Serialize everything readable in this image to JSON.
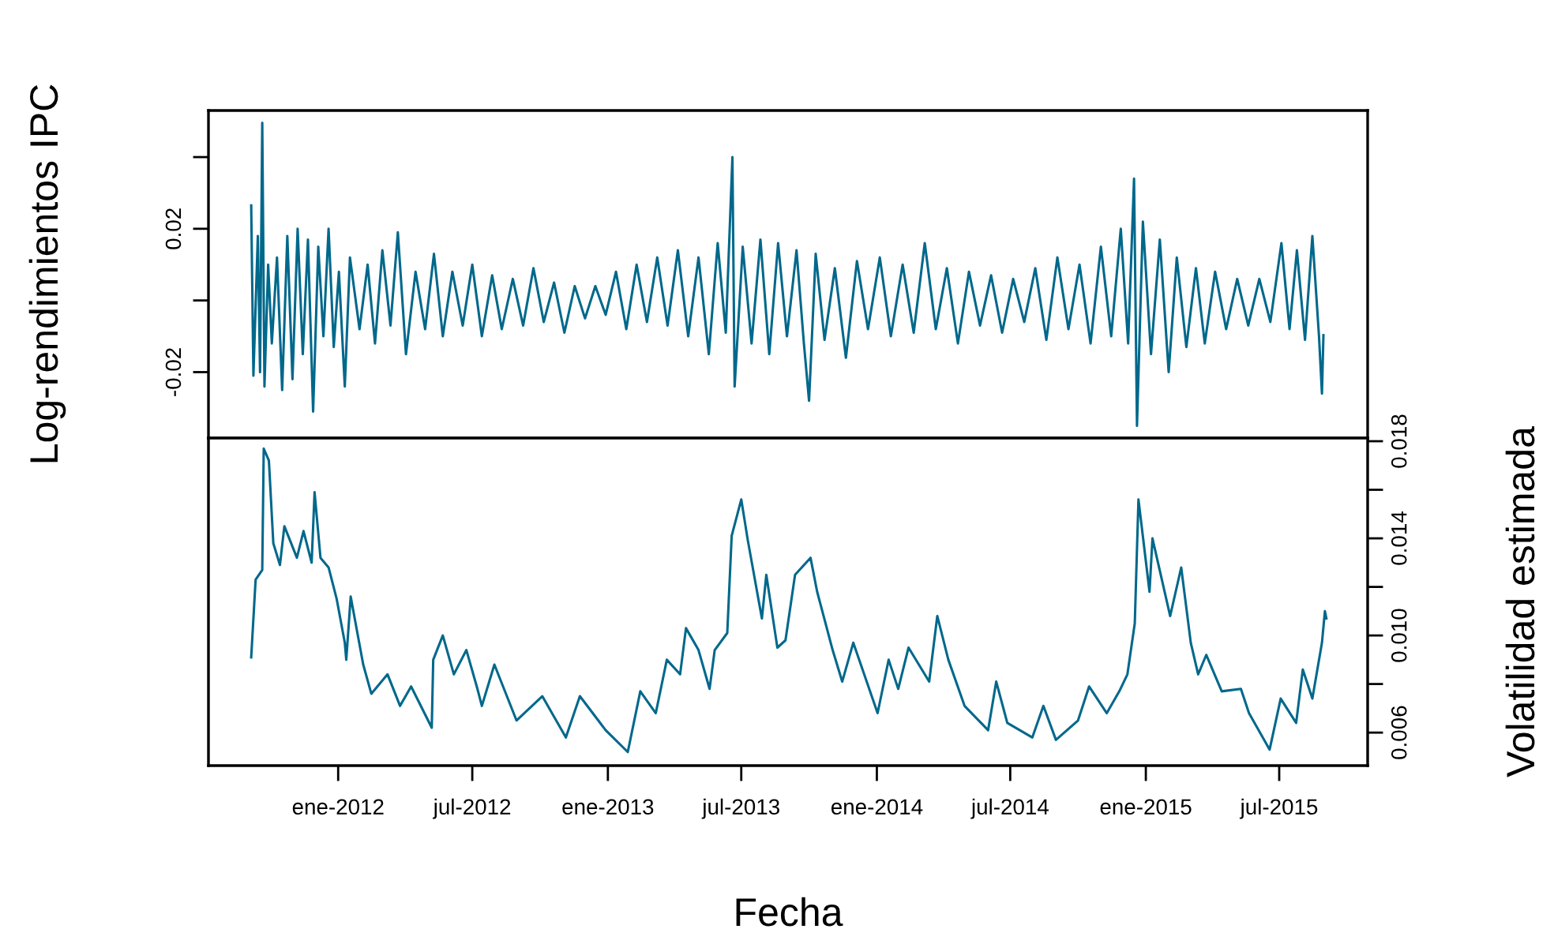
{
  "chart_data": [
    {
      "type": "line",
      "ylabel": "Log-rendimientos IPC",
      "xlim": [
        "2011-07-09",
        "2015-10-29"
      ],
      "ylim": [
        -0.0384,
        0.053
      ],
      "yticks": [
        {
          "value": -0.02,
          "label": "-0.02"
        },
        {
          "value": 0,
          "label": null
        },
        0.02,
        {
          "value": 0.04,
          "label": null
        }
      ],
      "tick_labels": "y",
      "series": [
        {
          "color": "#00688b",
          "x": [
            "2011-09-05",
            "2011-09-08",
            "2011-09-14",
            "2011-09-17",
            "2011-09-20",
            "2011-09-23",
            "2011-09-28",
            "2011-10-03",
            "2011-10-10",
            "2011-10-17",
            "2011-10-24",
            "2011-10-31",
            "2011-11-07",
            "2011-11-14",
            "2011-11-21",
            "2011-11-28",
            "2011-12-05",
            "2011-12-12",
            "2011-12-19",
            "2011-12-26",
            "2012-01-02",
            "2012-01-10",
            "2012-01-17",
            "2012-01-30",
            "2012-02-10",
            "2012-02-20",
            "2012-03-01",
            "2012-03-12",
            "2012-03-22",
            "2012-04-02",
            "2012-04-15",
            "2012-04-28",
            "2012-05-10",
            "2012-05-22",
            "2012-06-04",
            "2012-06-18",
            "2012-07-01",
            "2012-07-14",
            "2012-07-28",
            "2012-08-10",
            "2012-08-25",
            "2012-09-08",
            "2012-09-22",
            "2012-10-06",
            "2012-10-20",
            "2012-11-03",
            "2012-11-17",
            "2012-12-01",
            "2012-12-15",
            "2012-12-29",
            "2013-01-12",
            "2013-01-26",
            "2013-02-09",
            "2013-02-23",
            "2013-03-09",
            "2013-03-23",
            "2013-04-06",
            "2013-04-20",
            "2013-05-04",
            "2013-05-18",
            "2013-05-30",
            "2013-06-10",
            "2013-06-19",
            "2013-06-22",
            "2013-07-03",
            "2013-07-15",
            "2013-07-27",
            "2013-08-08",
            "2013-08-20",
            "2013-09-01",
            "2013-09-14",
            "2013-09-24",
            "2013-10-01",
            "2013-10-10",
            "2013-10-22",
            "2013-11-05",
            "2013-11-20",
            "2013-12-05",
            "2013-12-20",
            "2014-01-05",
            "2014-01-20",
            "2014-02-05",
            "2014-02-20",
            "2014-03-07",
            "2014-03-22",
            "2014-04-06",
            "2014-04-21",
            "2014-05-06",
            "2014-05-21",
            "2014-06-05",
            "2014-06-20",
            "2014-07-05",
            "2014-07-20",
            "2014-08-04",
            "2014-08-19",
            "2014-09-03",
            "2014-09-18",
            "2014-10-03",
            "2014-10-18",
            "2014-11-01",
            "2014-11-15",
            "2014-11-28",
            "2014-12-08",
            "2014-12-16",
            "2014-12-20",
            "2014-12-28",
            "2015-01-08",
            "2015-01-20",
            "2015-02-01",
            "2015-02-12",
            "2015-02-25",
            "2015-03-10",
            "2015-03-22",
            "2015-04-05",
            "2015-04-20",
            "2015-05-05",
            "2015-05-20",
            "2015-06-04",
            "2015-06-19",
            "2015-07-04",
            "2015-07-15",
            "2015-07-25",
            "2015-08-05",
            "2015-08-15",
            "2015-08-24",
            "2015-08-28",
            "2015-08-30"
          ],
          "values": [
            0.0265,
            -0.021,
            0.018,
            -0.02,
            0.0496,
            -0.024,
            0.01,
            -0.012,
            0.012,
            -0.025,
            0.018,
            -0.022,
            0.02,
            -0.015,
            0.017,
            -0.031,
            0.015,
            -0.01,
            0.02,
            -0.013,
            0.008,
            -0.024,
            0.012,
            -0.008,
            0.01,
            -0.012,
            0.014,
            -0.007,
            0.019,
            -0.015,
            0.008,
            -0.008,
            0.013,
            -0.01,
            0.008,
            -0.007,
            0.01,
            -0.01,
            0.007,
            -0.008,
            0.006,
            -0.007,
            0.009,
            -0.006,
            0.005,
            -0.009,
            0.004,
            -0.005,
            0.004,
            -0.004,
            0.008,
            -0.008,
            0.01,
            -0.006,
            0.012,
            -0.007,
            0.014,
            -0.01,
            0.012,
            -0.015,
            0.016,
            -0.009,
            0.04,
            -0.024,
            0.015,
            -0.012,
            0.017,
            -0.015,
            0.016,
            -0.01,
            0.014,
            -0.012,
            -0.028,
            0.013,
            -0.011,
            0.009,
            -0.016,
            0.011,
            -0.008,
            0.012,
            -0.01,
            0.01,
            -0.009,
            0.016,
            -0.008,
            0.009,
            -0.012,
            0.008,
            -0.007,
            0.007,
            -0.009,
            0.006,
            -0.006,
            0.009,
            -0.011,
            0.012,
            -0.008,
            0.01,
            -0.012,
            0.015,
            -0.01,
            0.02,
            -0.012,
            0.034,
            -0.035,
            0.022,
            -0.015,
            0.017,
            -0.02,
            0.012,
            -0.013,
            0.009,
            -0.012,
            0.008,
            -0.008,
            0.006,
            -0.007,
            0.006,
            -0.006,
            0.016,
            -0.008,
            0.014,
            -0.011,
            0.018,
            -0.01,
            -0.026,
            -0.0097
          ]
        }
      ]
    },
    {
      "type": "line",
      "xlabel": "Fecha",
      "y2label": "Volatilidad estimada",
      "xlim": [
        "2011-07-09",
        "2015-10-29"
      ],
      "xticks": [
        {
          "value": "2012-01-01",
          "label": "ene-2012"
        },
        {
          "value": "2012-07-01",
          "label": "jul-2012"
        },
        {
          "value": "2013-01-01",
          "label": "ene-2013"
        },
        {
          "value": "2013-07-01",
          "label": "jul-2013"
        },
        {
          "value": "2014-01-01",
          "label": "ene-2014"
        },
        {
          "value": "2014-07-01",
          "label": "jul-2014"
        },
        {
          "value": "2015-01-01",
          "label": "ene-2015"
        },
        {
          "value": "2015-07-01",
          "label": "jul-2015"
        }
      ],
      "y2lim": [
        0.00464,
        0.01813
      ],
      "y2ticks": [
        0.006,
        {
          "value": 0.008,
          "label": null
        },
        {
          "value": 0.01,
          "label": "0.010"
        },
        {
          "value": 0.012,
          "label": null
        },
        0.014,
        {
          "value": 0.016,
          "label": null
        },
        0.018
      ],
      "series": [
        {
          "color": "#00688b",
          "axis": "y2",
          "x": [
            "2011-09-05",
            "2011-09-11",
            "2011-09-20",
            "2011-09-22",
            "2011-09-29",
            "2011-10-05",
            "2011-10-14",
            "2011-10-20",
            "2011-11-06",
            "2011-11-15",
            "2011-11-26",
            "2011-11-30",
            "2011-12-08",
            "2011-12-19",
            "2011-12-30",
            "2012-01-10",
            "2012-01-12",
            "2012-01-18",
            "2012-02-04",
            "2012-02-15",
            "2012-03-08",
            "2012-03-25",
            "2012-04-09",
            "2012-05-07",
            "2012-05-09",
            "2012-05-22",
            "2012-06-06",
            "2012-06-23",
            "2012-07-08",
            "2012-07-14",
            "2012-07-31",
            "2012-08-30",
            "2012-10-04",
            "2012-11-05",
            "2012-11-24",
            "2012-12-29",
            "2013-01-28",
            "2013-02-14",
            "2013-03-07",
            "2013-03-22",
            "2013-04-09",
            "2013-04-17",
            "2013-05-04",
            "2013-05-19",
            "2013-05-26",
            "2013-06-12",
            "2013-06-18",
            "2013-07-01",
            "2013-07-10",
            "2013-07-29",
            "2013-08-04",
            "2013-08-19",
            "2013-08-30",
            "2013-09-12",
            "2013-10-03",
            "2013-10-12",
            "2013-11-02",
            "2013-11-15",
            "2013-11-30",
            "2014-01-02",
            "2014-01-17",
            "2014-01-30",
            "2014-02-13",
            "2014-03-13",
            "2014-03-24",
            "2014-04-08",
            "2014-04-30",
            "2014-06-01",
            "2014-06-12",
            "2014-06-27",
            "2014-07-31",
            "2014-08-15",
            "2014-09-01",
            "2014-10-01",
            "2014-10-16",
            "2014-11-09",
            "2014-11-26",
            "2014-12-07",
            "2014-12-17",
            "2014-12-22",
            "2015-01-06",
            "2015-01-10",
            "2015-02-03",
            "2015-02-18",
            "2015-03-03",
            "2015-03-13",
            "2015-03-24",
            "2015-04-14",
            "2015-05-10",
            "2015-05-21",
            "2015-06-18",
            "2015-07-03",
            "2015-07-24",
            "2015-08-02",
            "2015-08-15",
            "2015-08-28",
            "2015-09-01",
            "2015-09-03"
          ],
          "values": [
            0.0091,
            0.0123,
            0.0127,
            0.0177,
            0.0172,
            0.0138,
            0.0129,
            0.0145,
            0.0132,
            0.0143,
            0.013,
            0.0159,
            0.0132,
            0.0128,
            0.0115,
            0.0097,
            0.009,
            0.0116,
            0.0088,
            0.0076,
            0.0084,
            0.0071,
            0.0079,
            0.0062,
            0.009,
            0.01,
            0.0084,
            0.0094,
            0.0078,
            0.0071,
            0.0088,
            0.0065,
            0.0075,
            0.0058,
            0.0075,
            0.0061,
            0.0052,
            0.0077,
            0.0068,
            0.009,
            0.0084,
            0.0103,
            0.0094,
            0.0078,
            0.0094,
            0.0101,
            0.0141,
            0.0156,
            0.0139,
            0.0107,
            0.0125,
            0.0095,
            0.0098,
            0.0125,
            0.0132,
            0.0118,
            0.0094,
            0.0081,
            0.0097,
            0.0068,
            0.009,
            0.0078,
            0.0095,
            0.0081,
            0.0108,
            0.009,
            0.0071,
            0.0061,
            0.0081,
            0.0064,
            0.0058,
            0.0071,
            0.0057,
            0.0065,
            0.0079,
            0.0068,
            0.0077,
            0.0084,
            0.0105,
            0.0156,
            0.0118,
            0.014,
            0.0108,
            0.0128,
            0.0097,
            0.0084,
            0.0092,
            0.0077,
            0.0078,
            0.0068,
            0.0053,
            0.0074,
            0.0064,
            0.0086,
            0.0074,
            0.0097,
            0.011,
            0.0107
          ]
        }
      ]
    }
  ]
}
